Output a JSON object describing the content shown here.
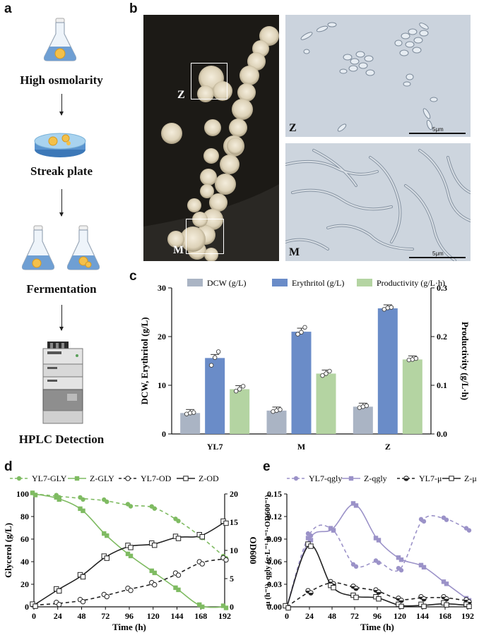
{
  "panel_labels": {
    "a": "a",
    "b": "b",
    "c": "c",
    "d": "d",
    "e": "e"
  },
  "workflow": {
    "steps": [
      "High osmolarity",
      "Streak plate",
      "Fermentation",
      "HPLC Detection"
    ],
    "icons": [
      "flask-icon",
      "petri-dish-icon",
      "two-flasks-icon",
      "hplc-instrument-icon"
    ]
  },
  "photo_panel": {
    "box_labels": [
      "Z",
      "M"
    ],
    "micrograph_labels": [
      "Z",
      "M"
    ],
    "scale_bar_label": "5μm"
  },
  "chart_data": [
    {
      "id": "c",
      "type": "bar",
      "categories": [
        "YL7",
        "M",
        "Z"
      ],
      "series": [
        {
          "name": "DCW (g/L)",
          "axis": "left",
          "values": [
            4.3,
            4.8,
            5.6
          ],
          "points": [
            [
              4.1,
              4.3,
              4.4
            ],
            [
              4.6,
              4.8,
              5.0
            ],
            [
              5.4,
              5.6,
              5.8
            ]
          ],
          "color": "#aab4c4"
        },
        {
          "name": "Erythritol (g/L)",
          "axis": "left",
          "values": [
            15.6,
            21.0,
            25.8
          ],
          "points": [
            [
              14.1,
              15.7,
              16.9
            ],
            [
              20.5,
              20.9,
              21.9
            ],
            [
              25.6,
              25.9,
              26.0
            ]
          ],
          "color": "#6a8cc8"
        },
        {
          "name": "Productivity (g/L·h)",
          "axis": "right",
          "values": [
            0.092,
            0.124,
            0.153
          ],
          "points": [
            [
              0.088,
              0.092,
              0.098
            ],
            [
              0.12,
              0.124,
              0.129
            ],
            [
              0.152,
              0.153,
              0.155
            ]
          ],
          "color": "#b4d4a2"
        }
      ],
      "ylabel": "DCW, Erythritol (g/L)",
      "y2label": "Productivity (g/L·h)",
      "ylim": [
        0,
        30
      ],
      "y2lim": [
        0,
        0.3
      ],
      "yticks": [
        "0",
        "10",
        "20",
        "30"
      ],
      "y2ticks": [
        "0.0",
        "0.1",
        "0.2",
        "0.3"
      ],
      "legend": "top"
    },
    {
      "id": "d",
      "type": "line",
      "x": [
        0,
        24,
        48,
        72,
        96,
        120,
        144,
        168,
        192
      ],
      "xticks": [
        "0",
        "24",
        "48",
        "72",
        "96",
        "120",
        "144",
        "168",
        "192"
      ],
      "series": [
        {
          "name": "YL7-GLY",
          "axis": "left",
          "style": "dashed",
          "marker": "filled-circle",
          "color": "#7fbb62",
          "values": [
            100,
            98,
            96,
            94,
            90,
            88,
            77,
            62,
            44
          ]
        },
        {
          "name": "Z-GLY",
          "axis": "left",
          "style": "solid",
          "marker": "filled-square",
          "color": "#7fbb62",
          "values": [
            100,
            96,
            86,
            64,
            46,
            31,
            16,
            1,
            0
          ]
        },
        {
          "name": "YL7-OD",
          "axis": "right",
          "style": "dashed",
          "marker": "open-circle",
          "color": "#222222",
          "values": [
            0.3,
            0.6,
            1.1,
            2.0,
            3.1,
            4.1,
            5.8,
            7.8,
            8.5
          ]
        },
        {
          "name": "Z-OD",
          "axis": "right",
          "style": "solid",
          "marker": "open-square",
          "color": "#222222",
          "values": [
            0.3,
            3.0,
            5.5,
            8.8,
            10.7,
            11.1,
            12.3,
            12.6,
            15.0
          ]
        }
      ],
      "xlabel": "Time (h)",
      "ylabel": "Glycerol (g/L)",
      "y2label": "OD600",
      "ylim": [
        0,
        100
      ],
      "y2lim": [
        0,
        20
      ],
      "yticks": [
        "0",
        "20",
        "40",
        "60",
        "80",
        "100"
      ],
      "y2ticks": [
        "0",
        "5",
        "10",
        "15",
        "20"
      ],
      "legend": "top"
    },
    {
      "id": "e",
      "type": "line",
      "x": [
        0,
        24,
        48,
        72,
        96,
        120,
        144,
        168,
        192
      ],
      "xticks": [
        "0",
        "24",
        "48",
        "72",
        "96",
        "120",
        "144",
        "168",
        "192"
      ],
      "series": [
        {
          "name": "YL7-qgly",
          "style": "dashed",
          "marker": "filled-circle",
          "color": "#9b92c8",
          "values": [
            0,
            0.096,
            0.103,
            0.055,
            0.06,
            0.05,
            0.115,
            0.117,
            0.103
          ]
        },
        {
          "name": "Z-qgly",
          "style": "solid",
          "marker": "filled-square",
          "color": "#9b92c8",
          "values": [
            0,
            0.09,
            0.103,
            0.136,
            0.09,
            0.064,
            0.054,
            0.032,
            0.01
          ]
        },
        {
          "name": "YL7-μ",
          "style": "dashed",
          "marker": "half-circle",
          "color": "#222222",
          "values": [
            0,
            0.02,
            0.032,
            0.026,
            0.021,
            0.01,
            0.012,
            0.012,
            0.008
          ]
        },
        {
          "name": "Z-μ",
          "style": "solid",
          "marker": "open-square",
          "color": "#222222",
          "values": [
            0,
            0.082,
            0.027,
            0.014,
            0.012,
            0.002,
            0.002,
            0.004,
            0.002
          ]
        }
      ],
      "xlabel": "Time (h)",
      "ylabel": "μ (h⁻¹), qgly (g·L⁻¹·h⁻¹·OD600⁻¹)",
      "ylim": [
        0,
        0.15
      ],
      "yticks": [
        "0.00",
        "0.03",
        "0.06",
        "0.09",
        "0.12",
        "0.15"
      ],
      "legend": "top"
    }
  ]
}
